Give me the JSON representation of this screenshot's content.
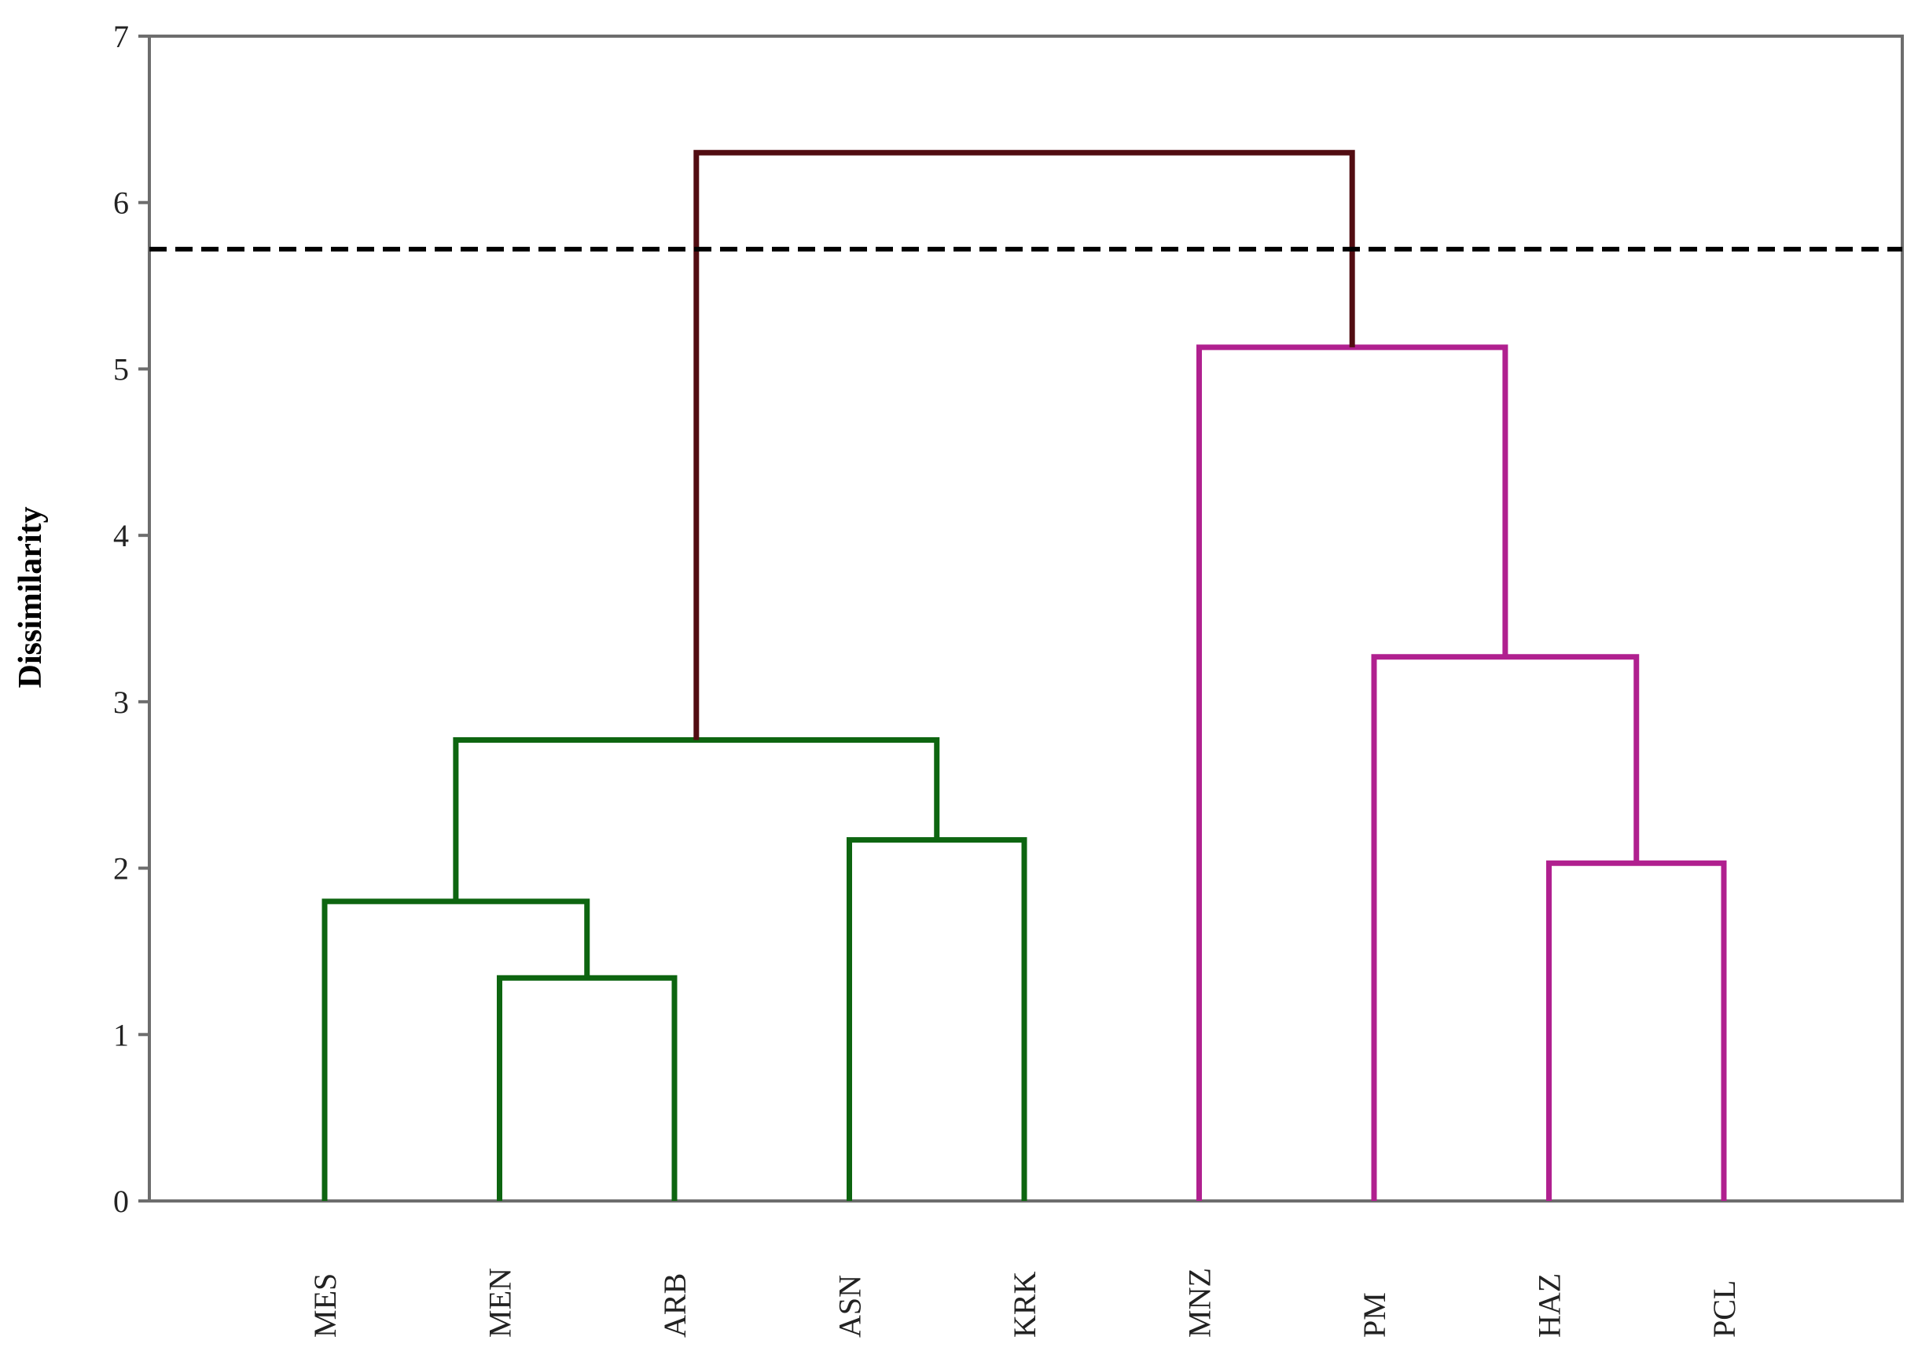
{
  "chart_data": {
    "type": "dendrogram",
    "title": "",
    "xlabel": "",
    "ylabel": "Dissimilarity",
    "ylim": [
      0,
      7
    ],
    "yticks": [
      "0",
      "1",
      "2",
      "3",
      "4",
      "5",
      "6",
      "7"
    ],
    "leaves": [
      "MES",
      "MEN",
      "ARB",
      "ASN",
      "KRK",
      "MNZ",
      "PM",
      "HAZ",
      "PCL"
    ],
    "merges": [
      {
        "left": "MEN",
        "right": "ARB",
        "height": 1.34,
        "color": "#0d6510"
      },
      {
        "left": "MES",
        "right": "MEN+ARB",
        "height": 1.8,
        "color": "#0d6510"
      },
      {
        "left": "ASN",
        "right": "KRK",
        "height": 2.17,
        "color": "#0d6510"
      },
      {
        "left": "MES+MEN+ARB",
        "right": "ASN+KRK",
        "height": 2.77,
        "color": "#0d6510"
      },
      {
        "left": "HAZ",
        "right": "PCL",
        "height": 2.03,
        "color": "#b0208f"
      },
      {
        "left": "PM",
        "right": "HAZ+PCL",
        "height": 3.27,
        "color": "#b0208f"
      },
      {
        "left": "MNZ",
        "right": "PM+HAZ+PCL",
        "height": 5.13,
        "color": "#b0208f"
      },
      {
        "left": "cluster-1",
        "right": "cluster-2",
        "height": 6.3,
        "color": "#520d12"
      }
    ],
    "cut_line": 5.72,
    "grid": false
  }
}
